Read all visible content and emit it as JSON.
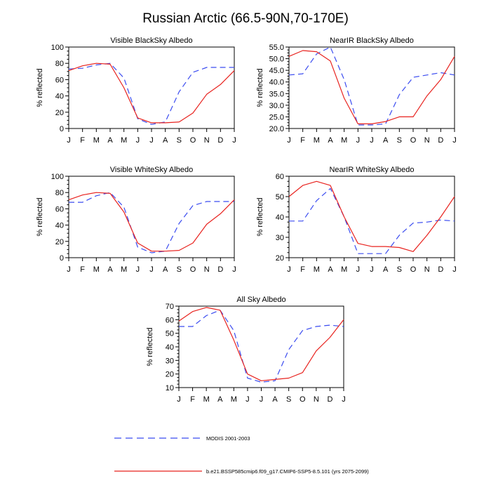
{
  "title": "Russian Arctic (66.5-90N,70-170E)",
  "legend": [
    {
      "label": "MODIS 2001-2003",
      "color": "#3b4cf0",
      "dashed": true
    },
    {
      "label": "b.e21.BSSP585cmip6.f09_g17.CMIP6-SSP5-8.5.101 (yrs 2075-2099)",
      "color": "#e8231f",
      "dashed": false
    }
  ],
  "chart_data": [
    {
      "type": "line",
      "title": "Visible BlackSky Albedo",
      "ylabel": "% reflected",
      "categories": [
        "J",
        "F",
        "M",
        "A",
        "M",
        "J",
        "J",
        "A",
        "S",
        "O",
        "N",
        "D",
        "J"
      ],
      "ylim": [
        0,
        100
      ],
      "yticks": [
        0,
        20,
        40,
        60,
        80,
        100
      ],
      "ytick_labels": [
        "0",
        "20",
        "40",
        "60",
        "80",
        "100"
      ],
      "series": [
        {
          "name": "MODIS 2001-2003",
          "color": "#3b4cf0",
          "dashed": true,
          "values": [
            73,
            74,
            78,
            80,
            62,
            12,
            5,
            8,
            45,
            69,
            75,
            75,
            75
          ]
        },
        {
          "name": "b.e21.BSSP585cmip6.f09_g17.CMIP6-SSP5-8.5.101 (yrs 2075-2099)",
          "color": "#e8231f",
          "dashed": false,
          "values": [
            71,
            77,
            80,
            79,
            50,
            13,
            7,
            7,
            8,
            19,
            42,
            54,
            71
          ]
        }
      ]
    },
    {
      "type": "line",
      "title": "NearIR BlackSky Albedo",
      "ylabel": "% reflected",
      "categories": [
        "J",
        "F",
        "M",
        "A",
        "M",
        "J",
        "J",
        "A",
        "S",
        "O",
        "N",
        "D",
        "J"
      ],
      "ylim": [
        20,
        55
      ],
      "yticks": [
        20,
        25,
        30,
        35,
        40,
        45,
        50,
        55
      ],
      "ytick_labels": [
        "20.0",
        "25.0",
        "30.0",
        "35.0",
        "40.0",
        "45.0",
        "50.0",
        "55.0"
      ],
      "series": [
        {
          "name": "MODIS 2001-2003",
          "color": "#3b4cf0",
          "dashed": true,
          "values": [
            43.0,
            43.5,
            52.0,
            55.0,
            41.0,
            21.5,
            21.5,
            22.0,
            34.5,
            42.0,
            43.0,
            44.0,
            43.0
          ]
        },
        {
          "name": "b.e21.BSSP585cmip6.f09_g17.CMIP6-SSP5-8.5.101 (yrs 2075-2099)",
          "color": "#e8231f",
          "dashed": false,
          "values": [
            51.0,
            53.5,
            53.0,
            49.0,
            33.0,
            22.0,
            22.0,
            23.0,
            25.0,
            25.0,
            34.0,
            41.0,
            51.0
          ]
        }
      ]
    },
    {
      "type": "line",
      "title": "Visible WhiteSky Albedo",
      "ylabel": "% reflected",
      "categories": [
        "J",
        "F",
        "M",
        "A",
        "M",
        "J",
        "J",
        "A",
        "S",
        "O",
        "N",
        "D",
        "J"
      ],
      "ylim": [
        0,
        100
      ],
      "yticks": [
        0,
        20,
        40,
        60,
        80,
        100
      ],
      "ytick_labels": [
        "0",
        "20",
        "40",
        "60",
        "80",
        "100"
      ],
      "series": [
        {
          "name": "MODIS 2001-2003",
          "color": "#3b4cf0",
          "dashed": true,
          "values": [
            68,
            68,
            76,
            80,
            62,
            13,
            6,
            8,
            42,
            64,
            69,
            69,
            69
          ]
        },
        {
          "name": "b.e21.BSSP585cmip6.f09_g17.CMIP6-SSP5-8.5.101 (yrs 2075-2099)",
          "color": "#e8231f",
          "dashed": false,
          "values": [
            71,
            77,
            80,
            79,
            56,
            18,
            8,
            8,
            9,
            18,
            41,
            54,
            71
          ]
        }
      ]
    },
    {
      "type": "line",
      "title": "NearIR WhiteSky Albedo",
      "ylabel": "% reflected",
      "categories": [
        "J",
        "F",
        "M",
        "A",
        "M",
        "J",
        "J",
        "A",
        "S",
        "O",
        "N",
        "D",
        "J"
      ],
      "ylim": [
        20,
        60
      ],
      "yticks": [
        20,
        30,
        40,
        50,
        60
      ],
      "ytick_labels": [
        "20",
        "30",
        "40",
        "50",
        "60"
      ],
      "series": [
        {
          "name": "MODIS 2001-2003",
          "color": "#3b4cf0",
          "dashed": true,
          "values": [
            38,
            38,
            48,
            54,
            40,
            22,
            22,
            22,
            31,
            37,
            37.5,
            38.5,
            38
          ]
        },
        {
          "name": "b.e21.BSSP585cmip6.f09_g17.CMIP6-SSP5-8.5.101 (yrs 2075-2099)",
          "color": "#e8231f",
          "dashed": false,
          "values": [
            50,
            55.5,
            57.5,
            55.5,
            40,
            27,
            25.5,
            25.5,
            25,
            23,
            31,
            40,
            50
          ]
        }
      ]
    },
    {
      "type": "line",
      "title": "All Sky Albedo",
      "ylabel": "% reflected",
      "categories": [
        "J",
        "F",
        "M",
        "A",
        "M",
        "J",
        "J",
        "A",
        "S",
        "O",
        "N",
        "D",
        "J"
      ],
      "ylim": [
        10,
        70
      ],
      "yticks": [
        10,
        20,
        30,
        40,
        50,
        60,
        70
      ],
      "ytick_labels": [
        "10",
        "20",
        "30",
        "40",
        "50",
        "60",
        "70"
      ],
      "series": [
        {
          "name": "MODIS 2001-2003",
          "color": "#3b4cf0",
          "dashed": true,
          "values": [
            55,
            55,
            63,
            67,
            52,
            17,
            14,
            15,
            38,
            52,
            55,
            56,
            55
          ]
        },
        {
          "name": "b.e21.BSSP585cmip6.f09_g17.CMIP6-SSP5-8.5.101 (yrs 2075-2099)",
          "color": "#e8231f",
          "dashed": false,
          "values": [
            59,
            66,
            69,
            67,
            45,
            20,
            15,
            16,
            17,
            21,
            37,
            47,
            60
          ]
        }
      ]
    }
  ]
}
